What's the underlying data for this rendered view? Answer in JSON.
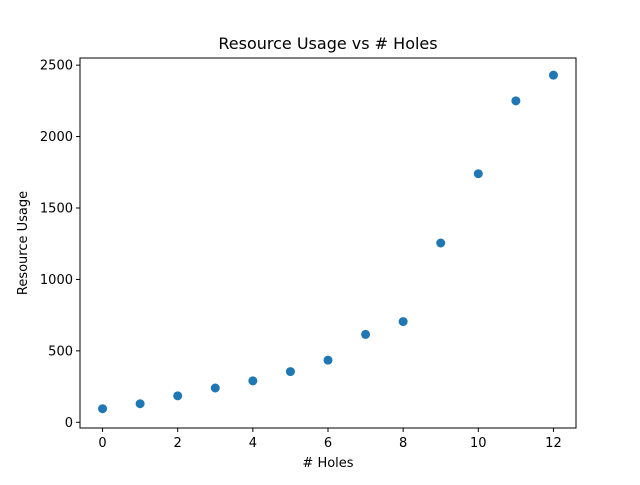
{
  "chart_data": {
    "type": "scatter",
    "title": "Resource Usage vs # Holes",
    "xlabel": "# Holes",
    "ylabel": "Resource Usage",
    "xlim": [
      -0.6,
      12.6
    ],
    "ylim": [
      -40,
      2550
    ],
    "xticks": [
      0,
      2,
      4,
      6,
      8,
      10,
      12
    ],
    "yticks": [
      0,
      500,
      1000,
      1500,
      2000,
      2500
    ],
    "grid": false,
    "marker_color": "#1f77b4",
    "x": [
      0,
      1,
      2,
      3,
      4,
      5,
      6,
      7,
      8,
      9,
      10,
      11,
      12
    ],
    "y": [
      95,
      130,
      185,
      240,
      290,
      355,
      435,
      615,
      705,
      1255,
      1740,
      2250,
      2430
    ]
  }
}
